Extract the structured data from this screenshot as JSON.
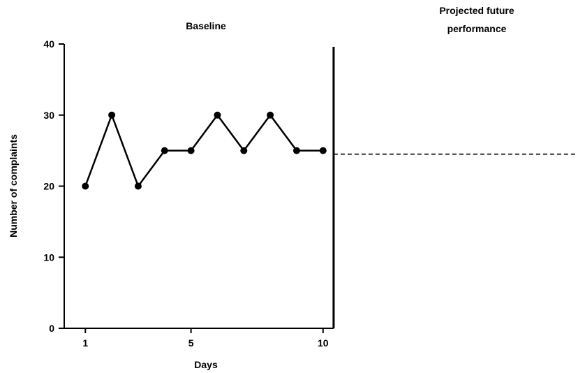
{
  "chart_data": {
    "type": "line",
    "phases": {
      "baseline_label": "Baseline",
      "projection_label_line1": "Projected future",
      "projection_label_line2": "performance"
    },
    "xlabel": "Days",
    "ylabel": "Number of complaints",
    "x_ticks": [
      "1",
      "5",
      "10"
    ],
    "y_ticks": [
      "0",
      "10",
      "20",
      "30",
      "40"
    ],
    "xlim": [
      0.2,
      19.6
    ],
    "ylim": [
      0,
      40
    ],
    "x": [
      1,
      2,
      3,
      4,
      5,
      6,
      7,
      8,
      9,
      10
    ],
    "values": [
      20,
      30,
      20,
      25,
      25,
      30,
      25,
      30,
      25,
      25
    ],
    "projection_level": 24.5,
    "phase_change_after_day": 10.4
  }
}
